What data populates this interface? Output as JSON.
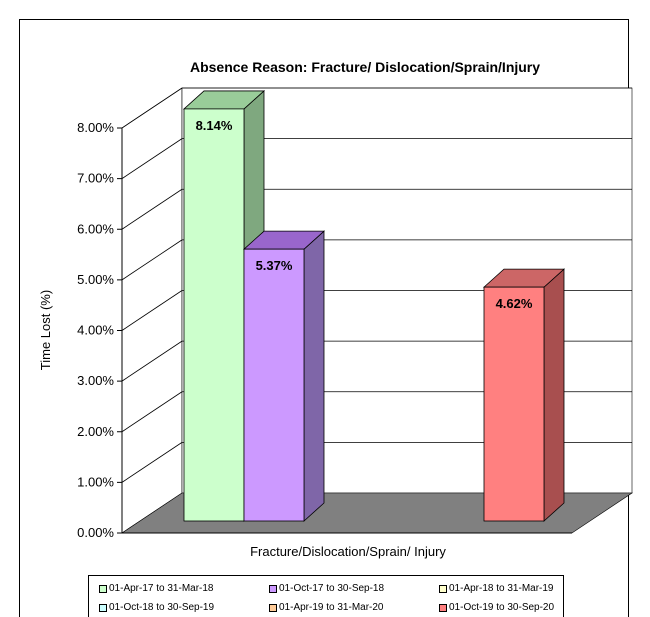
{
  "chart_data": {
    "type": "bar",
    "title": "Absence Reason: Fracture/ Dislocation/Sprain/Injury",
    "xlabel": "Fracture/Dislocation/Sprain/ Injury",
    "ylabel": "Time Lost (%)",
    "ylim": [
      0,
      8
    ],
    "yticks": [
      "0.00%",
      "1.00%",
      "2.00%",
      "3.00%",
      "4.00%",
      "5.00%",
      "6.00%",
      "7.00%",
      "8.00%"
    ],
    "grid": true,
    "legend_position": "bottom",
    "series": [
      {
        "name": "01-Apr-17 to 31-Mar-18",
        "value": 8.14,
        "label": "8.14%",
        "color": "#ccffcc",
        "side": "#7fa87f",
        "top": "#99cc99"
      },
      {
        "name": "01-Oct-17 to 30-Sep-18",
        "value": 5.37,
        "label": "5.37%",
        "color": "#cc99ff",
        "side": "#7f66a8",
        "top": "#9966cc"
      },
      {
        "name": "01-Apr-18 to 31-Mar-19",
        "value": null,
        "label": "",
        "color": "#ffffcc",
        "side": "#a8a87f",
        "top": "#cccc99"
      },
      {
        "name": "01-Oct-18 to 30-Sep-19",
        "value": null,
        "label": "",
        "color": "#ccffff",
        "side": "#7fa8a8",
        "top": "#99cccc"
      },
      {
        "name": "01-Apr-19 to 31-Mar-20",
        "value": null,
        "label": "",
        "color": "#ffcc99",
        "side": "#a8855f",
        "top": "#cc9966"
      },
      {
        "name": "01-Oct-19 to 30-Sep-20",
        "value": 4.62,
        "label": "4.62%",
        "color": "#ff8080",
        "side": "#a84f4f",
        "top": "#cc6666"
      }
    ]
  }
}
